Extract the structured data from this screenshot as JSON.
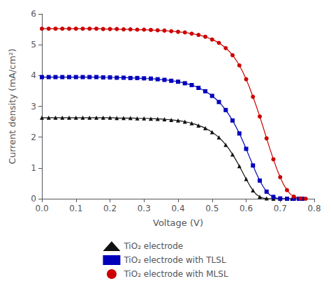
{
  "chart_data": {
    "type": "line",
    "xlabel": "Voltage (V)",
    "ylabel": "Current density (mA/cm²)",
    "xlim": [
      0,
      0.8
    ],
    "ylim": [
      0,
      6
    ],
    "xticks": [
      {
        "value": 0,
        "label": "0.0"
      },
      0.1,
      0.2,
      0.3,
      0.4,
      0.5,
      0.6,
      0.7,
      0.8
    ],
    "yticks": [
      0,
      1,
      2,
      3,
      4,
      5,
      6
    ],
    "grid": false,
    "legend": "bottom",
    "series": [
      {
        "name": "TiO₂ electrode",
        "color": "#111111",
        "marker": "triangle",
        "x": [
          0.0,
          0.01,
          0.02,
          0.03,
          0.04,
          0.05,
          0.06,
          0.07,
          0.08,
          0.09,
          0.1,
          0.11,
          0.12,
          0.13,
          0.14,
          0.15,
          0.16,
          0.17,
          0.18,
          0.19,
          0.2,
          0.21,
          0.22,
          0.23,
          0.24,
          0.25,
          0.26,
          0.27,
          0.28,
          0.29,
          0.3,
          0.31,
          0.32,
          0.33,
          0.34,
          0.35,
          0.36,
          0.37,
          0.38,
          0.39,
          0.4,
          0.41,
          0.42,
          0.43,
          0.44,
          0.45,
          0.46,
          0.47,
          0.48,
          0.49,
          0.5,
          0.51,
          0.52,
          0.53,
          0.54,
          0.55,
          0.56,
          0.57,
          0.58,
          0.59,
          0.6,
          0.61,
          0.62,
          0.63,
          0.64,
          0.65,
          0.66,
          0.67,
          0.68,
          0.69,
          0.7,
          0.71,
          0.72,
          0.73,
          0.735
        ],
        "values": [
          2.63,
          2.63,
          2.63,
          2.63,
          2.63,
          2.63,
          2.63,
          2.63,
          2.63,
          2.63,
          2.63,
          2.63,
          2.63,
          2.63,
          2.63,
          2.63,
          2.63,
          2.63,
          2.63,
          2.63,
          2.63,
          2.63,
          2.62,
          2.62,
          2.62,
          2.62,
          2.62,
          2.62,
          2.61,
          2.61,
          2.61,
          2.61,
          2.6,
          2.6,
          2.59,
          2.59,
          2.58,
          2.57,
          2.56,
          2.55,
          2.54,
          2.52,
          2.5,
          2.48,
          2.45,
          2.42,
          2.38,
          2.34,
          2.29,
          2.23,
          2.16,
          2.08,
          1.99,
          1.88,
          1.75,
          1.61,
          1.44,
          1.26,
          1.06,
          0.85,
          0.64,
          0.44,
          0.27,
          0.14,
          0.06,
          0.02,
          0.01,
          0.0,
          0.0,
          0.0,
          0.0,
          0.0,
          0.0,
          0.0,
          0.0
        ]
      },
      {
        "name": "TiO₂ electrode with TLSL",
        "color": "#0000bb",
        "marker": "square",
        "x": [
          0.0,
          0.01,
          0.02,
          0.03,
          0.04,
          0.05,
          0.06,
          0.07,
          0.08,
          0.09,
          0.1,
          0.11,
          0.12,
          0.13,
          0.14,
          0.15,
          0.16,
          0.17,
          0.18,
          0.19,
          0.2,
          0.21,
          0.22,
          0.23,
          0.24,
          0.25,
          0.26,
          0.27,
          0.28,
          0.29,
          0.3,
          0.31,
          0.32,
          0.33,
          0.34,
          0.35,
          0.36,
          0.37,
          0.38,
          0.39,
          0.4,
          0.41,
          0.42,
          0.43,
          0.44,
          0.45,
          0.46,
          0.47,
          0.48,
          0.49,
          0.5,
          0.51,
          0.52,
          0.53,
          0.54,
          0.55,
          0.56,
          0.57,
          0.58,
          0.59,
          0.6,
          0.61,
          0.62,
          0.63,
          0.64,
          0.65,
          0.66,
          0.67,
          0.68,
          0.69,
          0.7,
          0.71,
          0.72,
          0.73,
          0.74,
          0.75,
          0.755,
          0.76,
          0.765,
          0.77
        ],
        "values": [
          3.95,
          3.95,
          3.95,
          3.95,
          3.95,
          3.95,
          3.95,
          3.95,
          3.95,
          3.95,
          3.95,
          3.95,
          3.95,
          3.95,
          3.95,
          3.95,
          3.95,
          3.95,
          3.94,
          3.94,
          3.94,
          3.94,
          3.93,
          3.93,
          3.93,
          3.93,
          3.92,
          3.92,
          3.92,
          3.91,
          3.91,
          3.9,
          3.9,
          3.89,
          3.88,
          3.87,
          3.86,
          3.85,
          3.83,
          3.82,
          3.8,
          3.78,
          3.75,
          3.72,
          3.69,
          3.65,
          3.6,
          3.55,
          3.49,
          3.42,
          3.34,
          3.25,
          3.14,
          3.02,
          2.88,
          2.72,
          2.54,
          2.34,
          2.12,
          1.88,
          1.62,
          1.35,
          1.08,
          0.82,
          0.59,
          0.39,
          0.23,
          0.12,
          0.06,
          0.02,
          0.01,
          0.0,
          0.0,
          0.0,
          0.0,
          0.0,
          0.0,
          0.0,
          0.0,
          0.0
        ]
      },
      {
        "name": "TiO₂ electrode with MLSL",
        "color": "#cc0000",
        "marker": "circle",
        "x": [
          0.0,
          0.01,
          0.02,
          0.03,
          0.04,
          0.05,
          0.06,
          0.07,
          0.08,
          0.09,
          0.1,
          0.11,
          0.12,
          0.13,
          0.14,
          0.15,
          0.16,
          0.17,
          0.18,
          0.19,
          0.2,
          0.21,
          0.22,
          0.23,
          0.24,
          0.25,
          0.26,
          0.27,
          0.28,
          0.29,
          0.3,
          0.31,
          0.32,
          0.33,
          0.34,
          0.35,
          0.36,
          0.37,
          0.38,
          0.39,
          0.4,
          0.41,
          0.42,
          0.43,
          0.44,
          0.45,
          0.46,
          0.47,
          0.48,
          0.49,
          0.5,
          0.51,
          0.52,
          0.53,
          0.54,
          0.55,
          0.56,
          0.57,
          0.58,
          0.59,
          0.6,
          0.61,
          0.62,
          0.63,
          0.64,
          0.65,
          0.66,
          0.67,
          0.68,
          0.69,
          0.7,
          0.71,
          0.72,
          0.73,
          0.74,
          0.75,
          0.76,
          0.77,
          0.775,
          0.78
        ],
        "values": [
          5.52,
          5.52,
          5.52,
          5.52,
          5.52,
          5.52,
          5.52,
          5.52,
          5.52,
          5.52,
          5.52,
          5.52,
          5.52,
          5.52,
          5.52,
          5.52,
          5.52,
          5.52,
          5.51,
          5.51,
          5.51,
          5.51,
          5.51,
          5.5,
          5.5,
          5.5,
          5.5,
          5.49,
          5.49,
          5.49,
          5.49,
          5.48,
          5.48,
          5.47,
          5.47,
          5.46,
          5.46,
          5.45,
          5.44,
          5.43,
          5.42,
          5.41,
          5.4,
          5.38,
          5.36,
          5.34,
          5.32,
          5.29,
          5.26,
          5.22,
          5.17,
          5.12,
          5.06,
          4.98,
          4.89,
          4.79,
          4.66,
          4.51,
          4.33,
          4.12,
          3.88,
          3.61,
          3.31,
          3.0,
          2.67,
          2.32,
          1.96,
          1.61,
          1.28,
          0.97,
          0.7,
          0.46,
          0.28,
          0.15,
          0.07,
          0.03,
          0.01,
          0.0,
          0.0,
          0.0
        ]
      }
    ]
  }
}
